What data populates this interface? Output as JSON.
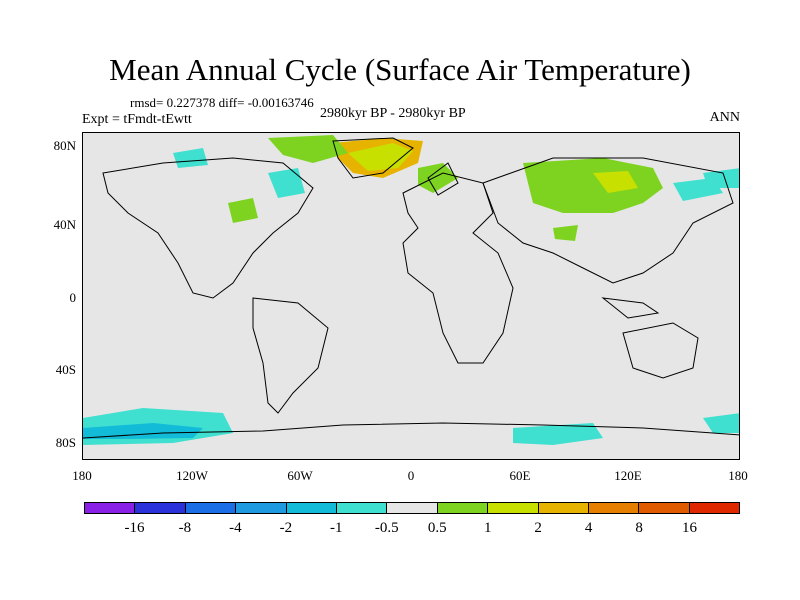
{
  "title": "Mean Annual Cycle (Surface Air Temperature)",
  "stats_line": "rmsd= 0.227378 diff= -0.00163746",
  "experiment": "Expt = tFmdt-tEwtt",
  "period": "2980kyr BP - 2980kyr BP",
  "season": "ANN",
  "lat_labels": [
    "80N",
    "40N",
    "0",
    "40S",
    "80S"
  ],
  "lon_labels": [
    "180",
    "120W",
    "60W",
    "0",
    "60E",
    "120E",
    "180"
  ],
  "legend": {
    "labels": [
      "-16",
      "-8",
      "-4",
      "-2",
      "-1",
      "-0.5",
      "0.5",
      "1",
      "2",
      "4",
      "8",
      "16"
    ],
    "colors": [
      "#8a1fe6",
      "#2b32d9",
      "#1c6ee6",
      "#1e9be0",
      "#12bcd8",
      "#3fe0d0",
      "#e6e6e6",
      "#7ed321",
      "#c8e000",
      "#e6b400",
      "#e67e00",
      "#e05a00",
      "#e02800"
    ]
  }
}
